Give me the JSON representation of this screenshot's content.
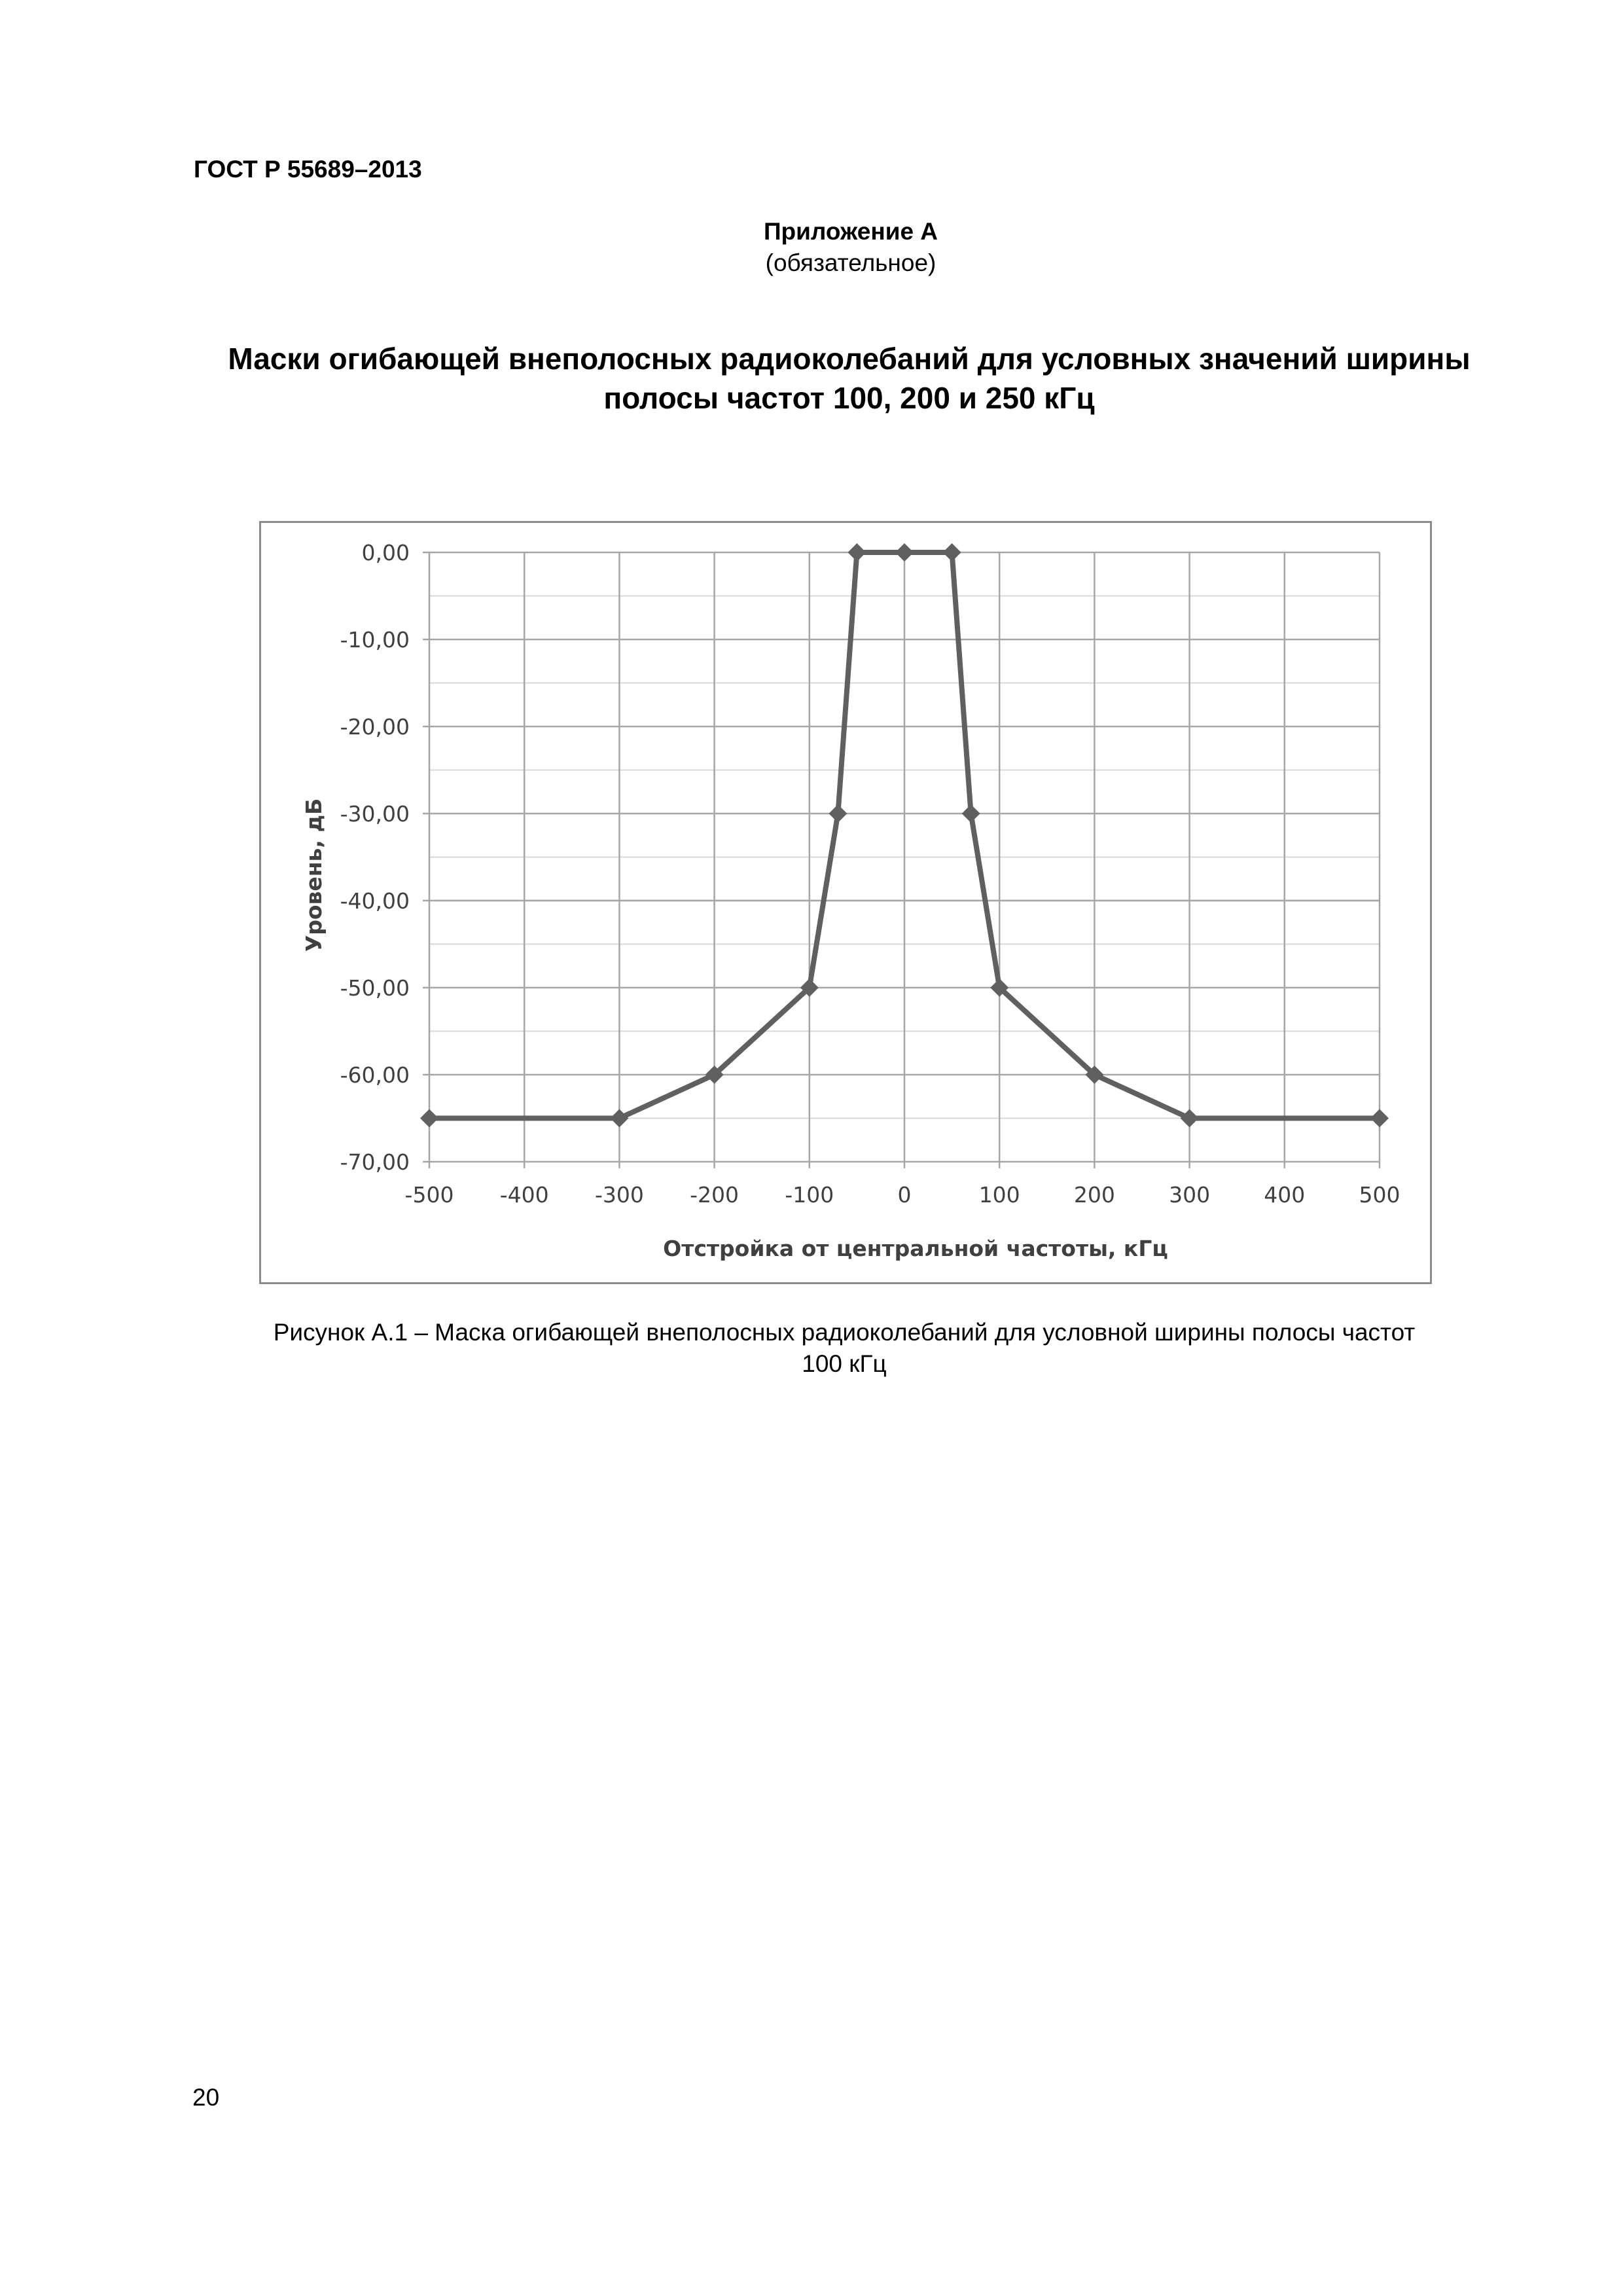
{
  "header": {
    "doc_code": "ГОСТ Р 55689–2013"
  },
  "appendix": {
    "title": "Приложение А",
    "subtitle": "(обязательное)"
  },
  "section_title": "Маски огибающей внеполосных радиоколебаний для условных значений ширины полосы частот 100, 200 и 250 кГц",
  "figure": {
    "caption_line1": "Рисунок А.1 – Маска огибающей внеполосных радиоколебаний для условной ширины полосы частот",
    "caption_line2": "100 кГц"
  },
  "page_number": "20",
  "colors": {
    "series": "#606060",
    "grid": "#a6a6a6",
    "axis_text": "#404040",
    "frame": "#8c8c8c"
  },
  "chart_data": {
    "type": "line",
    "title": "",
    "xlabel": "Отстройка от центральной частоты, кГц",
    "ylabel": "Уровень, дБ",
    "xlim": [
      -500,
      500
    ],
    "ylim": [
      -70,
      0
    ],
    "x_ticks": [
      -500,
      -400,
      -300,
      -200,
      -100,
      0,
      100,
      200,
      300,
      400,
      500
    ],
    "x_tick_labels": [
      "-500",
      "-400",
      "-300",
      "-200",
      "-100",
      "0",
      "100",
      "200",
      "300",
      "400",
      "500"
    ],
    "y_ticks": [
      0,
      -10,
      -20,
      -30,
      -40,
      -50,
      -60,
      -70
    ],
    "y_tick_labels": [
      "0,00",
      "-10,00",
      "-20,00",
      "-30,00",
      "-40,00",
      "-50,00",
      "-60,00",
      "-70,00"
    ],
    "grid": true,
    "minor_y_grid_step": 5,
    "marker": "diamond",
    "series": [
      {
        "x": [
          -500,
          -300,
          -200,
          -100,
          -70,
          -50,
          0,
          50,
          70,
          100,
          200,
          300,
          500
        ],
        "y": [
          -65,
          -65,
          -60,
          -50,
          -30,
          0,
          0,
          0,
          -30,
          -50,
          -60,
          -65,
          -65
        ]
      }
    ]
  }
}
